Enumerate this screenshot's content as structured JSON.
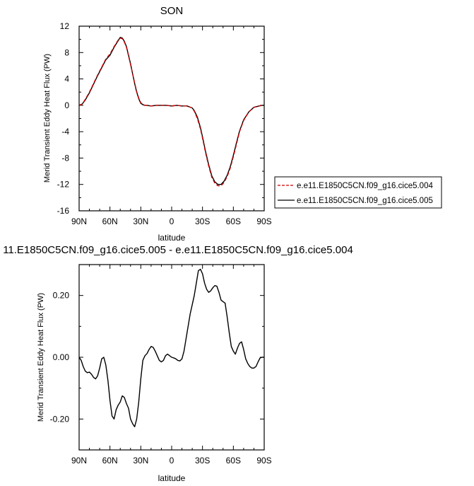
{
  "chart_data": [
    {
      "type": "line",
      "title": "SON",
      "xlabel": "latitude",
      "ylabel": "Merid Transient Eddy Heat Flux (PW)",
      "xlim": [
        90,
        -90
      ],
      "ylim": [
        -16,
        12
      ],
      "x_ticks": [
        {
          "value": 90,
          "label": "90N"
        },
        {
          "value": 60,
          "label": "60N"
        },
        {
          "value": 30,
          "label": "30N"
        },
        {
          "value": 0,
          "label": "0"
        },
        {
          "value": -30,
          "label": "30S"
        },
        {
          "value": -60,
          "label": "60S"
        },
        {
          "value": -90,
          "label": "90S"
        }
      ],
      "y_ticks": [
        {
          "value": 12,
          "label": "12"
        },
        {
          "value": 8,
          "label": "8"
        },
        {
          "value": 4,
          "label": "4"
        },
        {
          "value": 0,
          "label": "0"
        },
        {
          "value": -4,
          "label": "-4"
        },
        {
          "value": -8,
          "label": "-8"
        },
        {
          "value": -12,
          "label": "-12"
        },
        {
          "value": -16,
          "label": "-16"
        }
      ],
      "legend_position": "right",
      "series": [
        {
          "name": "e.e11.E1850C5CN.f09_g16.cice5.004",
          "color": "#cc0000",
          "dash": "dashed",
          "x": [
            90,
            87,
            84,
            80,
            76,
            72,
            68,
            64,
            60,
            56,
            52,
            50,
            48,
            46,
            44,
            42,
            40,
            38,
            36,
            34,
            32,
            30,
            28,
            26,
            24,
            20,
            15,
            10,
            5,
            0,
            -5,
            -10,
            -15,
            -20,
            -22,
            -25,
            -28,
            -30,
            -33,
            -36,
            -39,
            -42,
            -45,
            -48,
            -51,
            -54,
            -57,
            -60,
            -63,
            -66,
            -70,
            -75,
            -80,
            -85,
            -88,
            -90
          ],
          "y": [
            0,
            0.2,
            0.9,
            2.0,
            3.3,
            4.6,
            5.8,
            7.0,
            7.8,
            8.9,
            9.9,
            10.2,
            10.1,
            9.6,
            8.8,
            7.5,
            6.2,
            4.8,
            3.4,
            2.1,
            1.1,
            0.4,
            0.1,
            0,
            0,
            -0.1,
            0,
            0,
            0,
            -0.1,
            0,
            -0.1,
            -0.1,
            -0.4,
            -0.9,
            -2.0,
            -3.6,
            -5.0,
            -7.2,
            -9.2,
            -10.9,
            -11.8,
            -12.2,
            -12.2,
            -11.7,
            -10.8,
            -9.5,
            -7.8,
            -5.9,
            -4.0,
            -2.3,
            -1.0,
            -0.3,
            -0.1,
            0,
            0
          ]
        },
        {
          "name": "e.e11.E1850C5CN.f09_g16.cice5.005",
          "color": "#000000",
          "dash": "solid",
          "x": [
            90,
            87,
            84,
            80,
            76,
            72,
            68,
            64,
            60,
            56,
            52,
            50,
            48,
            46,
            44,
            42,
            40,
            38,
            36,
            34,
            32,
            30,
            28,
            26,
            24,
            20,
            15,
            10,
            5,
            0,
            -5,
            -10,
            -15,
            -20,
            -22,
            -25,
            -28,
            -30,
            -33,
            -36,
            -39,
            -42,
            -45,
            -48,
            -51,
            -54,
            -57,
            -60,
            -63,
            -66,
            -70,
            -75,
            -80,
            -85,
            -88,
            -90
          ],
          "y": [
            0,
            0.2,
            0.8,
            1.9,
            3.2,
            4.5,
            5.7,
            6.9,
            7.6,
            8.8,
            9.8,
            10.3,
            10.2,
            9.7,
            8.9,
            7.6,
            6.3,
            4.8,
            3.3,
            2.0,
            1.0,
            0.3,
            0.1,
            0,
            0,
            -0.1,
            0,
            0,
            0,
            -0.1,
            0,
            -0.1,
            -0.1,
            -0.4,
            -0.8,
            -1.8,
            -3.4,
            -4.8,
            -7.0,
            -9.0,
            -10.7,
            -11.6,
            -12.0,
            -12.0,
            -11.5,
            -10.6,
            -9.3,
            -7.6,
            -5.7,
            -3.9,
            -2.2,
            -1.0,
            -0.3,
            -0.1,
            0,
            0
          ]
        }
      ]
    },
    {
      "type": "line",
      "title": "11.E1850C5CN.f09_g16.cice5.005 - e.e11.E1850C5CN.f09_g16.cice5.004",
      "xlabel": "latitude",
      "ylabel": "Merid Transient Eddy Heat Flux (PW)",
      "xlim": [
        90,
        -90
      ],
      "ylim": [
        -0.3,
        0.3
      ],
      "x_ticks": [
        {
          "value": 90,
          "label": "90N"
        },
        {
          "value": 60,
          "label": "60N"
        },
        {
          "value": 30,
          "label": "30N"
        },
        {
          "value": 0,
          "label": "0"
        },
        {
          "value": -30,
          "label": "30S"
        },
        {
          "value": -60,
          "label": "60S"
        },
        {
          "value": -90,
          "label": "90S"
        }
      ],
      "y_ticks": [
        {
          "value": 0.2,
          "label": "0.20"
        },
        {
          "value": 0.0,
          "label": "0.00"
        },
        {
          "value": -0.2,
          "label": "-0.20"
        }
      ],
      "series": [
        {
          "color": "#000000",
          "dash": "solid",
          "x": [
            90,
            88,
            86,
            84,
            82,
            80,
            78,
            76,
            74,
            72,
            70,
            68,
            66,
            64,
            62,
            60,
            58,
            56,
            54,
            52,
            50,
            48,
            46,
            44,
            42,
            40,
            38,
            36,
            34,
            32,
            30,
            28,
            26,
            24,
            22,
            20,
            18,
            16,
            14,
            12,
            10,
            8,
            6,
            4,
            2,
            0,
            -2,
            -4,
            -6,
            -8,
            -10,
            -12,
            -14,
            -16,
            -18,
            -20,
            -22,
            -24,
            -26,
            -28,
            -30,
            -32,
            -34,
            -36,
            -38,
            -40,
            -42,
            -44,
            -46,
            -48,
            -50,
            -52,
            -54,
            -56,
            -58,
            -60,
            -62,
            -64,
            -66,
            -68,
            -70,
            -72,
            -74,
            -76,
            -78,
            -80,
            -82,
            -84,
            -86,
            -88,
            -90
          ],
          "y": [
            0.0,
            -0.01,
            -0.03,
            -0.045,
            -0.05,
            -0.048,
            -0.055,
            -0.065,
            -0.07,
            -0.06,
            -0.035,
            -0.005,
            0.0,
            -0.025,
            -0.075,
            -0.14,
            -0.19,
            -0.2,
            -0.17,
            -0.155,
            -0.145,
            -0.125,
            -0.13,
            -0.15,
            -0.165,
            -0.2,
            -0.215,
            -0.225,
            -0.2,
            -0.145,
            -0.07,
            -0.01,
            0.005,
            0.012,
            0.025,
            0.035,
            0.032,
            0.02,
            0.005,
            -0.01,
            -0.015,
            -0.01,
            0.005,
            0.01,
            0.005,
            0.0,
            -0.002,
            -0.005,
            -0.01,
            -0.012,
            -0.005,
            0.02,
            0.06,
            0.1,
            0.14,
            0.17,
            0.2,
            0.24,
            0.28,
            0.285,
            0.27,
            0.24,
            0.22,
            0.21,
            0.215,
            0.225,
            0.232,
            0.23,
            0.21,
            0.185,
            0.18,
            0.175,
            0.13,
            0.08,
            0.035,
            0.02,
            0.01,
            0.03,
            0.045,
            0.05,
            0.025,
            -0.005,
            -0.02,
            -0.03,
            -0.035,
            -0.035,
            -0.03,
            -0.015,
            -0.002,
            0.0,
            0.0
          ]
        }
      ]
    }
  ]
}
